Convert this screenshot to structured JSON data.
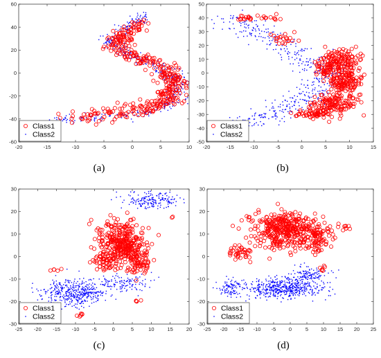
{
  "figure": {
    "captions": [
      "(a)",
      "(b)",
      "(c)",
      "(d)"
    ]
  },
  "colors": {
    "class1": "#ff0000",
    "class2": "#0000ff",
    "axis": "#262626"
  },
  "chart_data": [
    {
      "type": "scatter",
      "caption": "(a)",
      "xlim": [
        -20,
        10
      ],
      "ylim": [
        -60,
        60
      ],
      "xticks": [
        -20,
        -15,
        -10,
        -5,
        0,
        5,
        10
      ],
      "yticks": [
        -60,
        -40,
        -20,
        0,
        20,
        40,
        60
      ],
      "legend": {
        "position": "bottom-left",
        "entries": [
          "Class1",
          "Class2"
        ]
      },
      "series": [
        {
          "name": "Class1",
          "marker": "circle-open",
          "color": "#ff0000",
          "path": [
            [
              -10,
              -39
            ],
            [
              -5,
              -36
            ],
            [
              0,
              -33
            ],
            [
              3,
              -30
            ],
            [
              6,
              -24
            ],
            [
              7.5,
              -15
            ],
            [
              7.5,
              -5
            ],
            [
              6,
              2
            ],
            [
              4,
              8
            ],
            [
              1,
              14
            ],
            [
              -2,
              22
            ],
            [
              -3,
              28
            ],
            [
              -1,
              35
            ],
            [
              1.5,
              42
            ]
          ],
          "spread": [
            1.2,
            3.5
          ],
          "count": 420
        },
        {
          "name": "Class2",
          "marker": "dot",
          "color": "#0000ff",
          "path": [
            [
              -13,
              -41
            ],
            [
              -8,
              -39
            ],
            [
              -3,
              -37
            ],
            [
              1,
              -35
            ],
            [
              4,
              -32
            ],
            [
              6.5,
              -26
            ],
            [
              8,
              -17
            ],
            [
              8,
              -7
            ],
            [
              6.5,
              1
            ],
            [
              4,
              7
            ],
            [
              1,
              13
            ],
            [
              -2,
              20
            ],
            [
              -4,
              27
            ],
            [
              -2,
              36
            ],
            [
              1,
              46
            ],
            [
              2.5,
              52
            ]
          ],
          "spread": [
            0.9,
            2.2
          ],
          "count": 520
        }
      ]
    },
    {
      "type": "scatter",
      "caption": "(b)",
      "xlim": [
        -20,
        15
      ],
      "ylim": [
        -50,
        50
      ],
      "xticks": [
        -20,
        -15,
        -10,
        -5,
        0,
        5,
        10,
        15
      ],
      "yticks": [
        -50,
        -40,
        -30,
        -20,
        -10,
        0,
        10,
        20,
        30,
        40,
        50
      ],
      "legend": {
        "position": "bottom-left",
        "entries": [
          "Class1",
          "Class2"
        ]
      },
      "series": [
        {
          "name": "Class1",
          "marker": "circle-open",
          "color": "#ff0000",
          "blobs": [
            [
              8,
              10,
              3.5,
              6,
              120
            ],
            [
              9,
              -5,
              3,
              8,
              160
            ],
            [
              7,
              -22,
              4,
              6,
              130
            ],
            [
              3,
              -30,
              4,
              3,
              60
            ],
            [
              5,
              3,
              2,
              4,
              40
            ],
            [
              -10,
              40,
              4,
              2,
              25
            ],
            [
              -4,
              25,
              2,
              3,
              20
            ]
          ],
          "count": 555
        },
        {
          "name": "Class2",
          "marker": "dot",
          "color": "#0000ff",
          "path": [
            [
              -15,
              40
            ],
            [
              -10,
              32
            ],
            [
              -5,
              22
            ],
            [
              0,
              12
            ],
            [
              4,
              5
            ],
            [
              6,
              0
            ],
            [
              4,
              -8
            ],
            [
              0,
              -18
            ],
            [
              -5,
              -28
            ],
            [
              -10,
              -35
            ],
            [
              -14,
              -38
            ]
          ],
          "spread": [
            2.5,
            3
          ],
          "count": 480
        }
      ]
    },
    {
      "type": "scatter",
      "caption": "(c)",
      "xlim": [
        -25,
        20
      ],
      "ylim": [
        -30,
        30
      ],
      "xticks": [
        -25,
        -20,
        -15,
        -10,
        -5,
        0,
        5,
        10,
        15,
        20
      ],
      "yticks": [
        -30,
        -20,
        -10,
        0,
        10,
        20,
        30
      ],
      "legend": {
        "position": "bottom-left",
        "entries": [
          "Class1",
          "Class2"
        ]
      },
      "series": [
        {
          "name": "Class1",
          "marker": "circle-open",
          "color": "#ff0000",
          "blobs": [
            [
              2,
              6,
              5,
              8,
              320
            ],
            [
              7,
              -2,
              2.5,
              5,
              80
            ],
            [
              -2,
              -2,
              3,
              4,
              60
            ],
            [
              -9,
              -26,
              1,
              1,
              6
            ],
            [
              7,
              -20,
              1,
              1,
              4
            ],
            [
              -15,
              -6,
              1.5,
              1,
              5
            ],
            [
              16,
              18,
              1,
              1,
              2
            ]
          ],
          "count": 477
        },
        {
          "name": "Class2",
          "marker": "dot",
          "color": "#0000ff",
          "blobs": [
            [
              -10,
              -16,
              7,
              5,
              420
            ],
            [
              10,
              25,
              6,
              3,
              180
            ],
            [
              2,
              -12,
              6,
              3,
              120
            ]
          ],
          "count": 720
        }
      ]
    },
    {
      "type": "scatter",
      "caption": "(d)",
      "xlim": [
        -25,
        25
      ],
      "ylim": [
        -30,
        30
      ],
      "xticks": [
        -25,
        -20,
        -15,
        -10,
        -5,
        0,
        5,
        10,
        15,
        20,
        25
      ],
      "yticks": [
        -30,
        -20,
        -10,
        0,
        10,
        20,
        30
      ],
      "legend": {
        "position": "bottom-left",
        "entries": [
          "Class1",
          "Class2"
        ]
      },
      "series": [
        {
          "name": "Class1",
          "marker": "circle-open",
          "color": "#ff0000",
          "blobs": [
            [
              -2,
              12,
              8,
              7,
              380
            ],
            [
              8,
              8,
              4,
              5,
              90
            ],
            [
              -15,
              2,
              3,
              3,
              40
            ],
            [
              17,
              13,
              2,
              1,
              10
            ],
            [
              10,
              -5,
              1,
              2,
              6
            ]
          ],
          "count": 526
        },
        {
          "name": "Class2",
          "marker": "dot",
          "color": "#0000ff",
          "blobs": [
            [
              -2,
              -14,
              10,
              4,
              520
            ],
            [
              -18,
              -14,
              3,
              3,
              90
            ],
            [
              5,
              -8,
              6,
              3,
              120
            ]
          ],
          "count": 730
        }
      ]
    }
  ]
}
